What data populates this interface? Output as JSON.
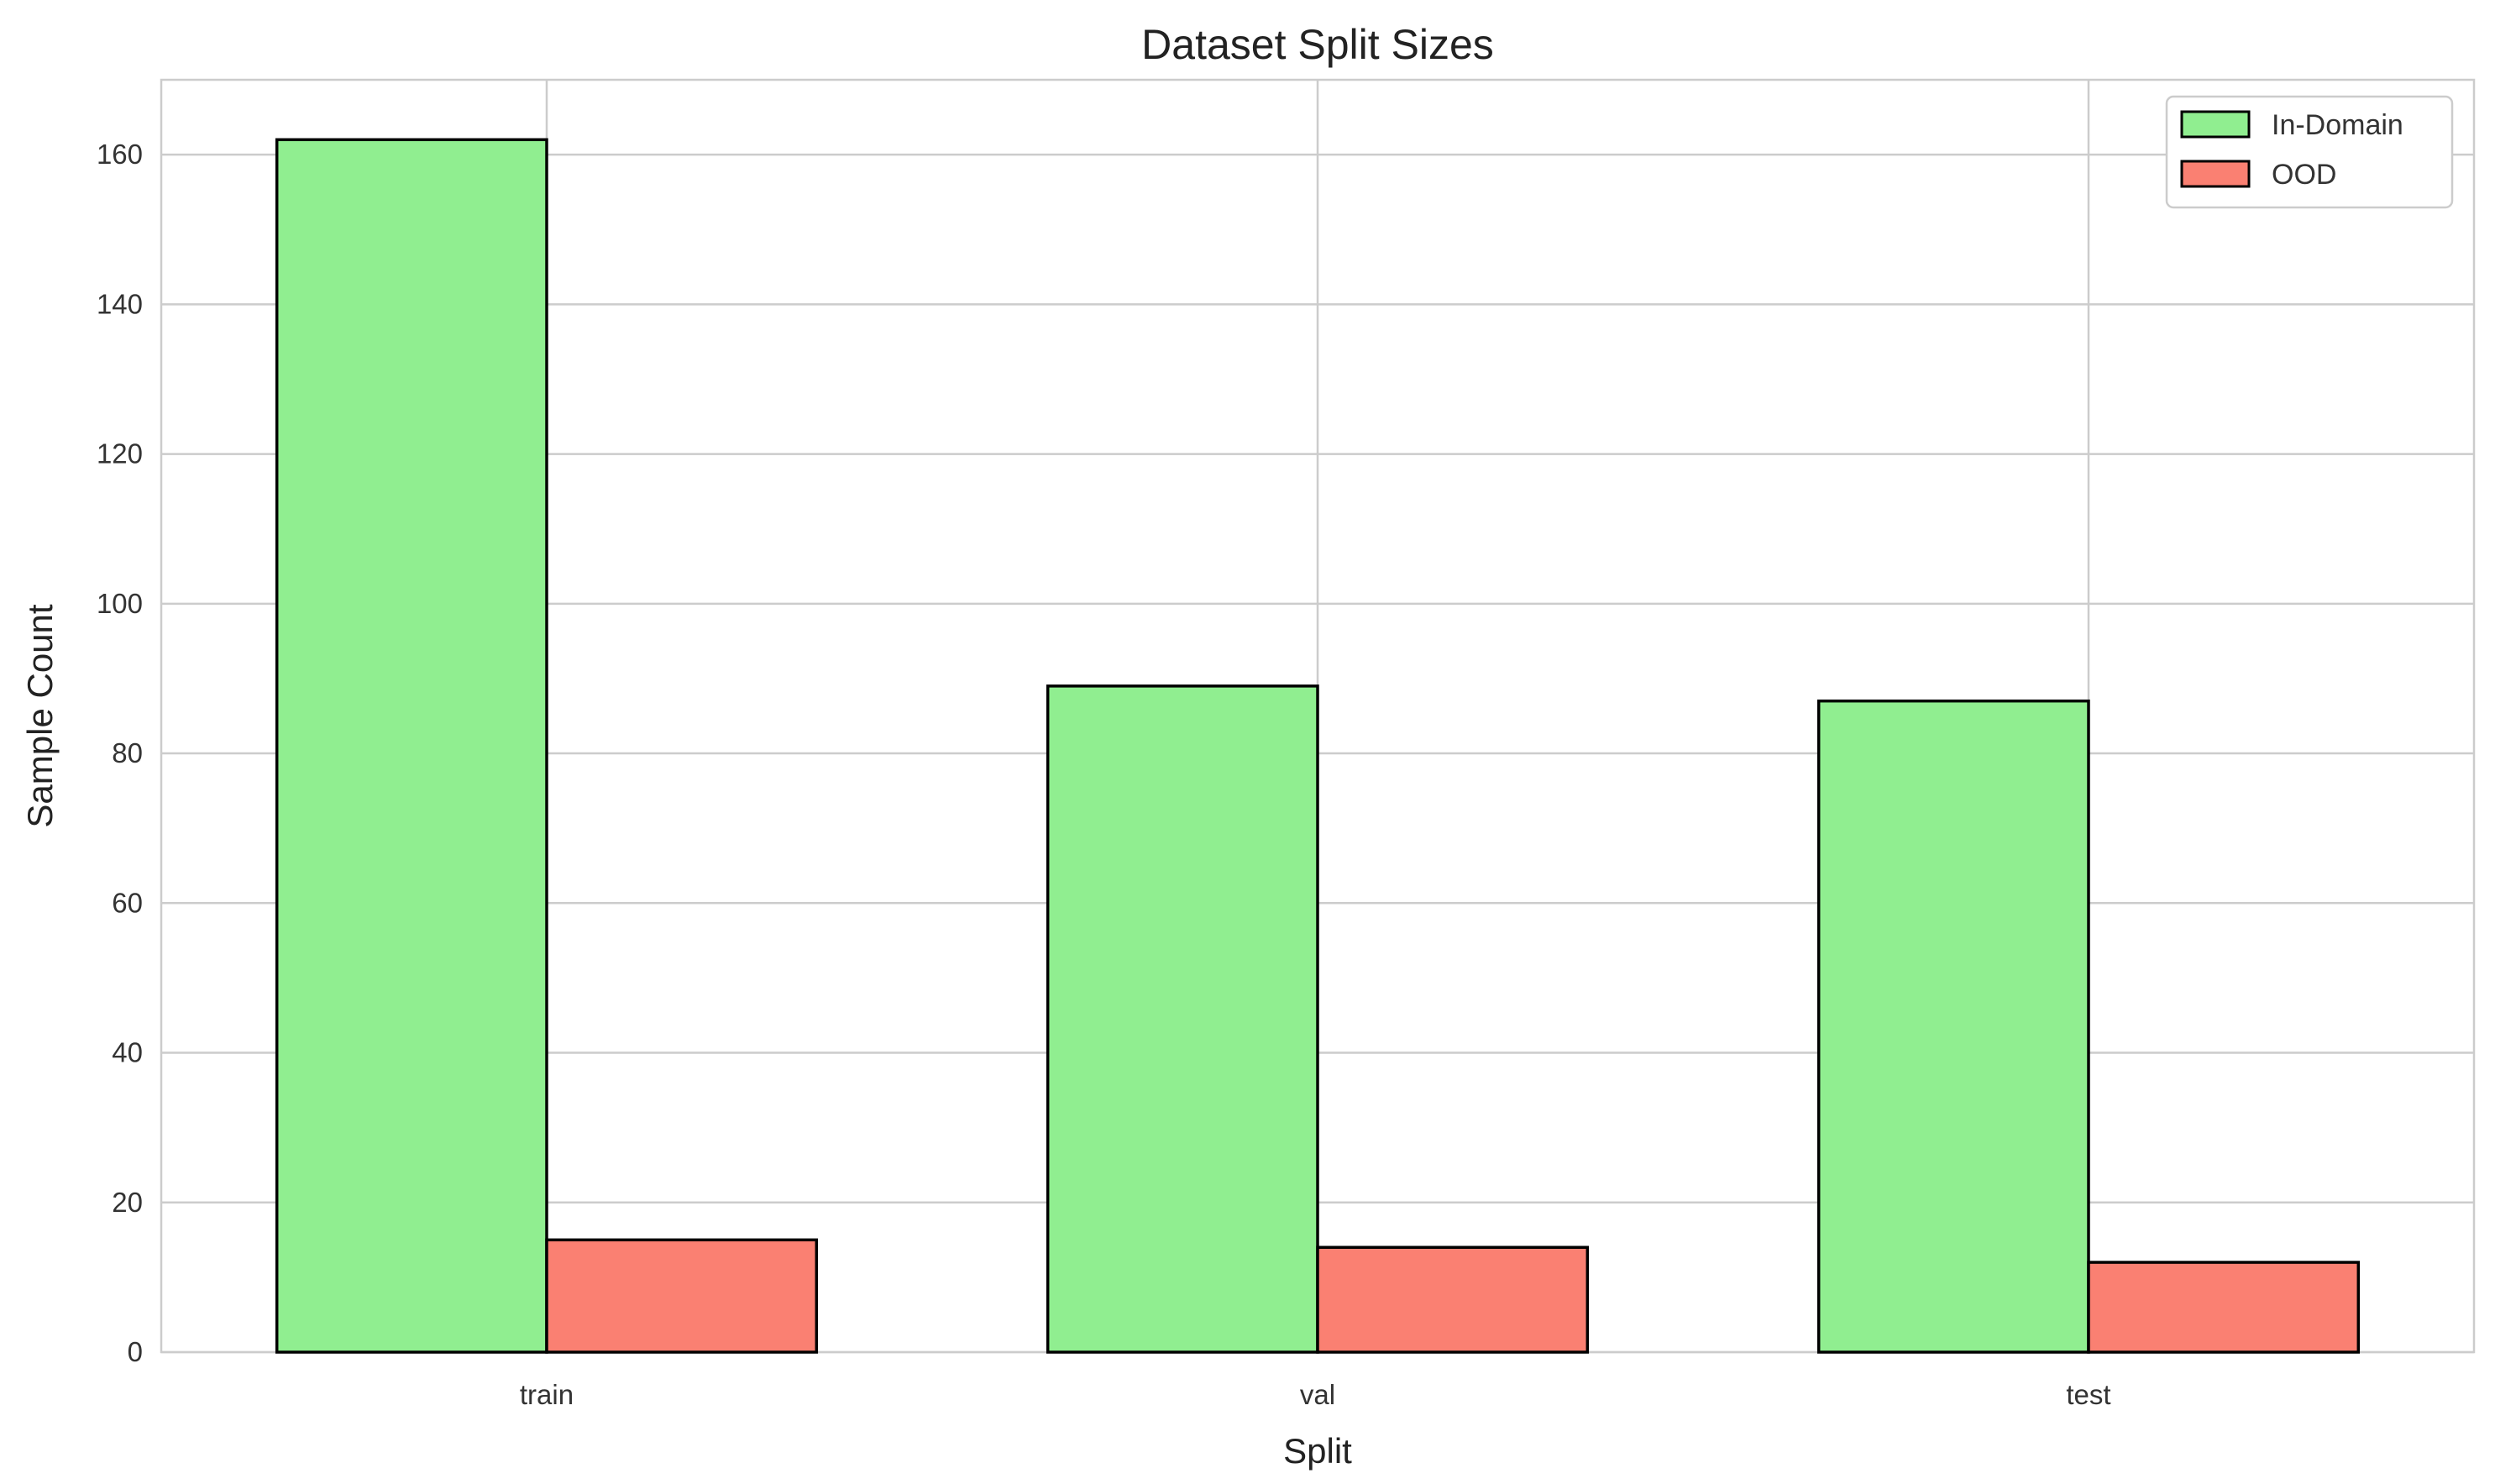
{
  "chart_data": {
    "type": "bar",
    "title": "Dataset Split Sizes",
    "xlabel": "Split",
    "ylabel": "Sample Count",
    "categories": [
      "train",
      "val",
      "test"
    ],
    "series": [
      {
        "name": "In-Domain",
        "values": [
          162,
          89,
          87
        ],
        "color": "#90ee90"
      },
      {
        "name": "OOD",
        "values": [
          15,
          14,
          12
        ],
        "color": "#fa8072"
      }
    ],
    "ylim": [
      0,
      170
    ],
    "yticks": [
      0,
      20,
      40,
      60,
      80,
      100,
      120,
      140,
      160
    ],
    "grid": true,
    "legend_position": "top-right"
  }
}
